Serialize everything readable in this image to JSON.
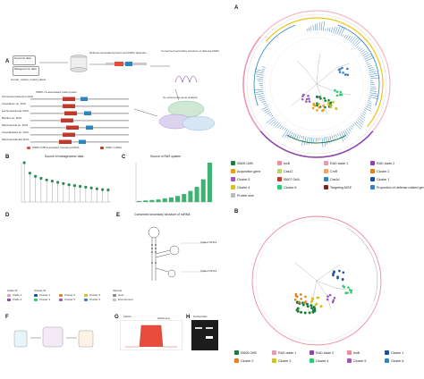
{
  "panels": {
    "left_A": "A",
    "B": "B",
    "C": "C",
    "D": "D",
    "E": "E",
    "F": "F",
    "G": "G",
    "H": "H",
    "right_A": "A",
    "right_B": "B"
  },
  "panelA": {
    "genomic_data": "Genomic data",
    "metagenomic_data": "Metagenomic data",
    "sources": "human, marine, mainly plants",
    "defense_search": "Defense-associated protein and FDRs detection",
    "conserved": "Conserved secondary structure of defense FDRs",
    "cooccurrence": "Co-occurrence gene analysis",
    "system_title": "IS605-Y1-associated Cas9 system",
    "rows": [
      "Firmicutes bacterium RAS",
      "Clostridium sp. RAS",
      "Lachnospiraceae RAS",
      "Bacillus sp. RAS",
      "Mitochondria sp. RAS",
      "Clostridioides sp. RAS",
      "Mitochondrial-like RAS"
    ],
    "legend_items": [
      "IS605 OrfB associated Conserved RNA",
      "IS607 ncRNA"
    ]
  },
  "panelB": {
    "title": "Source of metagenomic data"
  },
  "panelC": {
    "title": "Source of RAS system"
  },
  "panelE": {
    "title": "Conserved secondary structure of ncRNA",
    "lbl1": "Clade1 RNA1",
    "lbl2": "Clade2 RNA1"
  },
  "panelD_legend": {
    "clade": "Clade ID",
    "cluster": "Cluster ID",
    "sample": "Sample",
    "clade_items": [
      "Clade 1",
      "Clade 2"
    ],
    "cluster_items": [
      "Cluster 1",
      "Cluster 2",
      "Cluster 3",
      "Cluster 4",
      "Cluster 5",
      "Cluster 6"
    ],
    "sample_items": [
      "Host",
      "Environment"
    ]
  },
  "panelG": {
    "title": "Labels",
    "tag": "sRNA-seq"
  },
  "panelH": {
    "title": "Nucleotides"
  },
  "treeA_legend": [
    {
      "label": "IS605 OrfB",
      "color": "#1b7f3b"
    },
    {
      "label": "IscB",
      "color": "#f08a9c"
    },
    {
      "label": "RAD clade 1",
      "color": "#e99ab0"
    },
    {
      "label": "RAD clade 2",
      "color": "#8e44ad"
    },
    {
      "label": "Acquisition gene",
      "color": "#f39c12"
    },
    {
      "label": "Cas12",
      "color": "#b7d86a"
    },
    {
      "label": "CmR",
      "color": "#f5a25d"
    },
    {
      "label": "Cluster 2",
      "color": "#e67e22"
    },
    {
      "label": "Cluster 5",
      "color": "#9b59b6"
    },
    {
      "label": "IS607 OrfA",
      "color": "#c0392b"
    },
    {
      "label": "Cas1d",
      "color": "#2e86c1"
    },
    {
      "label": "Cluster 1",
      "color": "#1f4e9c"
    },
    {
      "label": "Cluster 4",
      "color": "#d4c12a"
    },
    {
      "label": "Cluster 6",
      "color": "#2ecc71"
    },
    {
      "label": "Targeting MGE",
      "color": "#7b241c"
    },
    {
      "label": "Proportion of defense-related genes",
      "color": "#3a7fc1"
    },
    {
      "label": "Protein size",
      "color": "#bbbbbb"
    }
  ],
  "treeB_legend": [
    {
      "label": "IS605 OrfB",
      "color": "#1b7f3b"
    },
    {
      "label": "RAD clade 1",
      "color": "#e99ab0"
    },
    {
      "label": "RAD clade 2",
      "color": "#8e44ad"
    },
    {
      "label": "IscB",
      "color": "#f08a9c"
    },
    {
      "label": "Cluster 1",
      "color": "#1f4e9c"
    },
    {
      "label": "Cluster 2",
      "color": "#e67e22"
    },
    {
      "label": "Cluster 3",
      "color": "#d4c12a"
    },
    {
      "label": "Cluster 4",
      "color": "#2ecc71"
    },
    {
      "label": "Cluster 5",
      "color": "#9b59b6"
    },
    {
      "label": "Cluster 6",
      "color": "#3a7fc1"
    }
  ],
  "chartB": {
    "type": "bar",
    "categories": [
      "c1",
      "c2",
      "c3",
      "c4",
      "c5",
      "c6",
      "c7",
      "c8",
      "c9",
      "c10",
      "c11",
      "c12",
      "c13",
      "c14",
      "c15",
      "c16"
    ],
    "values": [
      980,
      720,
      640,
      590,
      550,
      520,
      490,
      460,
      430,
      410,
      390,
      370,
      350,
      330,
      310,
      300
    ],
    "color": "#2e8b57"
  },
  "chartC": {
    "type": "bar",
    "categories": [
      "s1",
      "s2",
      "s3",
      "s4",
      "s5",
      "s6",
      "s7",
      "s8",
      "s9",
      "s10",
      "s11",
      "s12"
    ],
    "values": [
      2,
      3,
      4,
      5,
      7,
      9,
      12,
      16,
      22,
      30,
      45,
      78
    ],
    "color": "#3cb371"
  },
  "chart_data": [
    {
      "type": "bar",
      "categories": [
        "c1",
        "c2",
        "c3",
        "c4",
        "c5",
        "c6",
        "c7",
        "c8",
        "c9",
        "c10",
        "c11",
        "c12",
        "c13",
        "c14",
        "c15",
        "c16"
      ],
      "values": [
        980,
        720,
        640,
        590,
        550,
        520,
        490,
        460,
        430,
        410,
        390,
        370,
        350,
        330,
        310,
        300
      ],
      "title": "Source of metagenomic data",
      "xlabel": "",
      "ylabel": ""
    },
    {
      "type": "bar",
      "categories": [
        "s1",
        "s2",
        "s3",
        "s4",
        "s5",
        "s6",
        "s7",
        "s8",
        "s9",
        "s10",
        "s11",
        "s12"
      ],
      "values": [
        2,
        3,
        4,
        5,
        7,
        9,
        12,
        16,
        22,
        30,
        45,
        78
      ],
      "title": "Source of RAS system",
      "xlabel": "",
      "ylabel": ""
    }
  ]
}
